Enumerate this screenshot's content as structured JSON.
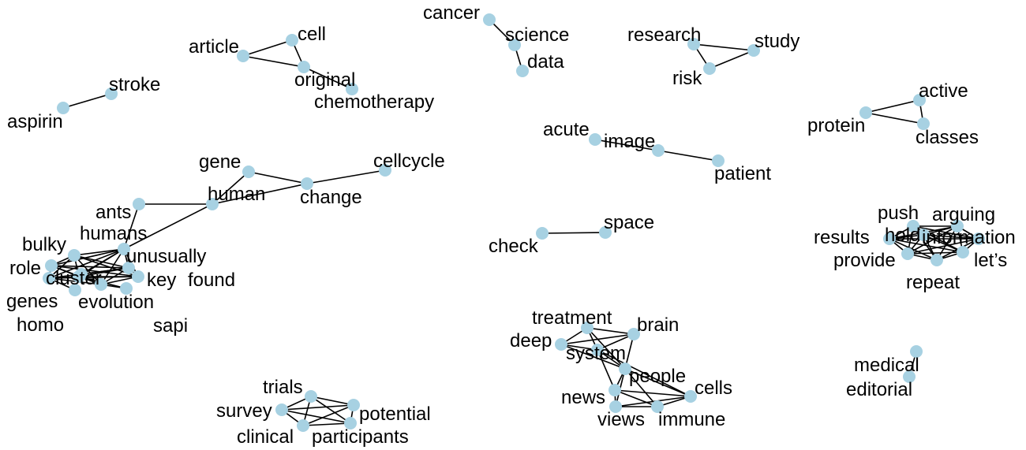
{
  "style": {
    "node_color": "#a7d1e2",
    "edge_color": "#000000",
    "label_color": "#000000",
    "background": "#ffffff"
  },
  "graph": {
    "nodes": [
      {
        "id": "cancer",
        "label": "cancer"
      },
      {
        "id": "science",
        "label": "science"
      },
      {
        "id": "data",
        "label": "data"
      },
      {
        "id": "article",
        "label": "article"
      },
      {
        "id": "cell",
        "label": "cell"
      },
      {
        "id": "original",
        "label": "original"
      },
      {
        "id": "chemotherapy",
        "label": "chemotherapy"
      },
      {
        "id": "research",
        "label": "research"
      },
      {
        "id": "study",
        "label": "study"
      },
      {
        "id": "risk",
        "label": "risk"
      },
      {
        "id": "stroke",
        "label": "stroke"
      },
      {
        "id": "aspirin",
        "label": "aspirin"
      },
      {
        "id": "active",
        "label": "active"
      },
      {
        "id": "protein",
        "label": "protein"
      },
      {
        "id": "classes",
        "label": "classes"
      },
      {
        "id": "acute",
        "label": "acute"
      },
      {
        "id": "image",
        "label": "image"
      },
      {
        "id": "patient",
        "label": "patient"
      },
      {
        "id": "gene",
        "label": "gene"
      },
      {
        "id": "cellcycle",
        "label": "cellcycle"
      },
      {
        "id": "human",
        "label": "human"
      },
      {
        "id": "change",
        "label": "change"
      },
      {
        "id": "ants",
        "label": "ants"
      },
      {
        "id": "humans",
        "label": "humans"
      },
      {
        "id": "bulky",
        "label": "bulky"
      },
      {
        "id": "unusually",
        "label": "unusually"
      },
      {
        "id": "role",
        "label": "role"
      },
      {
        "id": "key",
        "label": "key"
      },
      {
        "id": "found",
        "label": "found"
      },
      {
        "id": "cluster",
        "label": "cluster"
      },
      {
        "id": "genes",
        "label": "genes"
      },
      {
        "id": "evolution",
        "label": "evolution"
      },
      {
        "id": "homo",
        "label": "homo"
      },
      {
        "id": "sapi",
        "label": "sapi"
      },
      {
        "id": "check",
        "label": "check"
      },
      {
        "id": "space",
        "label": "space"
      },
      {
        "id": "push",
        "label": "push"
      },
      {
        "id": "arguing",
        "label": "arguing"
      },
      {
        "id": "results",
        "label": "results"
      },
      {
        "id": "hold",
        "label": "hold"
      },
      {
        "id": "information",
        "label": "information"
      },
      {
        "id": "provide",
        "label": "provide"
      },
      {
        "id": "lets",
        "label": "let’s"
      },
      {
        "id": "repeat",
        "label": "repeat"
      },
      {
        "id": "treatment",
        "label": "treatment"
      },
      {
        "id": "brain",
        "label": "brain"
      },
      {
        "id": "deep",
        "label": "deep"
      },
      {
        "id": "system",
        "label": "system"
      },
      {
        "id": "people",
        "label": "people"
      },
      {
        "id": "cells",
        "label": "cells"
      },
      {
        "id": "news",
        "label": "news"
      },
      {
        "id": "views",
        "label": "views"
      },
      {
        "id": "immune",
        "label": "immune"
      },
      {
        "id": "medical",
        "label": "medical"
      },
      {
        "id": "editorial",
        "label": "editorial"
      },
      {
        "id": "trials",
        "label": "trials"
      },
      {
        "id": "survey",
        "label": "survey"
      },
      {
        "id": "potential",
        "label": "potential"
      },
      {
        "id": "clinical",
        "label": "clinical"
      },
      {
        "id": "participants",
        "label": "participants"
      }
    ],
    "edges": [
      [
        "cancer",
        "science"
      ],
      [
        "science",
        "data"
      ],
      [
        "article",
        "cell"
      ],
      [
        "article",
        "original"
      ],
      [
        "cell",
        "original"
      ],
      [
        "original",
        "chemotherapy"
      ],
      [
        "research",
        "study"
      ],
      [
        "research",
        "risk"
      ],
      [
        "risk",
        "study"
      ],
      [
        "aspirin",
        "stroke"
      ],
      [
        "protein",
        "active"
      ],
      [
        "protein",
        "classes"
      ],
      [
        "active",
        "classes"
      ],
      [
        "acute",
        "image"
      ],
      [
        "image",
        "patient"
      ],
      [
        "gene",
        "change"
      ],
      [
        "gene",
        "human"
      ],
      [
        "change",
        "cellcycle"
      ],
      [
        "human",
        "change"
      ],
      [
        "human",
        "ants"
      ],
      [
        "human",
        "humans"
      ],
      [
        "ants",
        "humans"
      ],
      [
        "humans",
        "bulky"
      ],
      [
        "humans",
        "role"
      ],
      [
        "humans",
        "cluster"
      ],
      [
        "humans",
        "key"
      ],
      [
        "humans",
        "found"
      ],
      [
        "humans",
        "genes"
      ],
      [
        "humans",
        "evolution"
      ],
      [
        "humans",
        "unusually"
      ],
      [
        "bulky",
        "role"
      ],
      [
        "bulky",
        "cluster"
      ],
      [
        "bulky",
        "key"
      ],
      [
        "bulky",
        "genes"
      ],
      [
        "bulky",
        "evolution"
      ],
      [
        "bulky",
        "unusually"
      ],
      [
        "role",
        "cluster"
      ],
      [
        "role",
        "key"
      ],
      [
        "role",
        "genes"
      ],
      [
        "role",
        "evolution"
      ],
      [
        "role",
        "unusually"
      ],
      [
        "cluster",
        "key"
      ],
      [
        "cluster",
        "genes"
      ],
      [
        "cluster",
        "evolution"
      ],
      [
        "cluster",
        "unusually"
      ],
      [
        "cluster",
        "homo"
      ],
      [
        "cluster",
        "sapi"
      ],
      [
        "key",
        "genes"
      ],
      [
        "key",
        "evolution"
      ],
      [
        "key",
        "unusually"
      ],
      [
        "genes",
        "evolution"
      ],
      [
        "genes",
        "unusually"
      ],
      [
        "evolution",
        "unusually"
      ],
      [
        "evolution",
        "sapi"
      ],
      [
        "genes",
        "homo"
      ],
      [
        "unusually",
        "found"
      ],
      [
        "check",
        "space"
      ],
      [
        "push",
        "arguing"
      ],
      [
        "push",
        "results"
      ],
      [
        "push",
        "hold"
      ],
      [
        "push",
        "information"
      ],
      [
        "push",
        "provide"
      ],
      [
        "push",
        "lets"
      ],
      [
        "push",
        "repeat"
      ],
      [
        "arguing",
        "results"
      ],
      [
        "arguing",
        "hold"
      ],
      [
        "arguing",
        "information"
      ],
      [
        "arguing",
        "provide"
      ],
      [
        "arguing",
        "lets"
      ],
      [
        "arguing",
        "repeat"
      ],
      [
        "results",
        "hold"
      ],
      [
        "results",
        "information"
      ],
      [
        "results",
        "provide"
      ],
      [
        "results",
        "lets"
      ],
      [
        "results",
        "repeat"
      ],
      [
        "hold",
        "information"
      ],
      [
        "hold",
        "provide"
      ],
      [
        "hold",
        "lets"
      ],
      [
        "hold",
        "repeat"
      ],
      [
        "information",
        "provide"
      ],
      [
        "information",
        "lets"
      ],
      [
        "information",
        "repeat"
      ],
      [
        "provide",
        "lets"
      ],
      [
        "provide",
        "repeat"
      ],
      [
        "lets",
        "repeat"
      ],
      [
        "treatment",
        "brain"
      ],
      [
        "treatment",
        "deep"
      ],
      [
        "treatment",
        "system"
      ],
      [
        "treatment",
        "people"
      ],
      [
        "deep",
        "brain"
      ],
      [
        "deep",
        "system"
      ],
      [
        "deep",
        "people"
      ],
      [
        "brain",
        "system"
      ],
      [
        "brain",
        "people"
      ],
      [
        "system",
        "people"
      ],
      [
        "system",
        "news"
      ],
      [
        "system",
        "cells"
      ],
      [
        "people",
        "cells"
      ],
      [
        "people",
        "news"
      ],
      [
        "people",
        "views"
      ],
      [
        "people",
        "immune"
      ],
      [
        "news",
        "cells"
      ],
      [
        "news",
        "views"
      ],
      [
        "news",
        "immune"
      ],
      [
        "cells",
        "views"
      ],
      [
        "cells",
        "immune"
      ],
      [
        "views",
        "immune"
      ],
      [
        "medical",
        "editorial"
      ],
      [
        "trials",
        "survey"
      ],
      [
        "trials",
        "potential"
      ],
      [
        "trials",
        "clinical"
      ],
      [
        "trials",
        "participants"
      ],
      [
        "survey",
        "potential"
      ],
      [
        "survey",
        "clinical"
      ],
      [
        "survey",
        "participants"
      ],
      [
        "potential",
        "clinical"
      ],
      [
        "potential",
        "participants"
      ],
      [
        "clinical",
        "participants"
      ]
    ]
  }
}
